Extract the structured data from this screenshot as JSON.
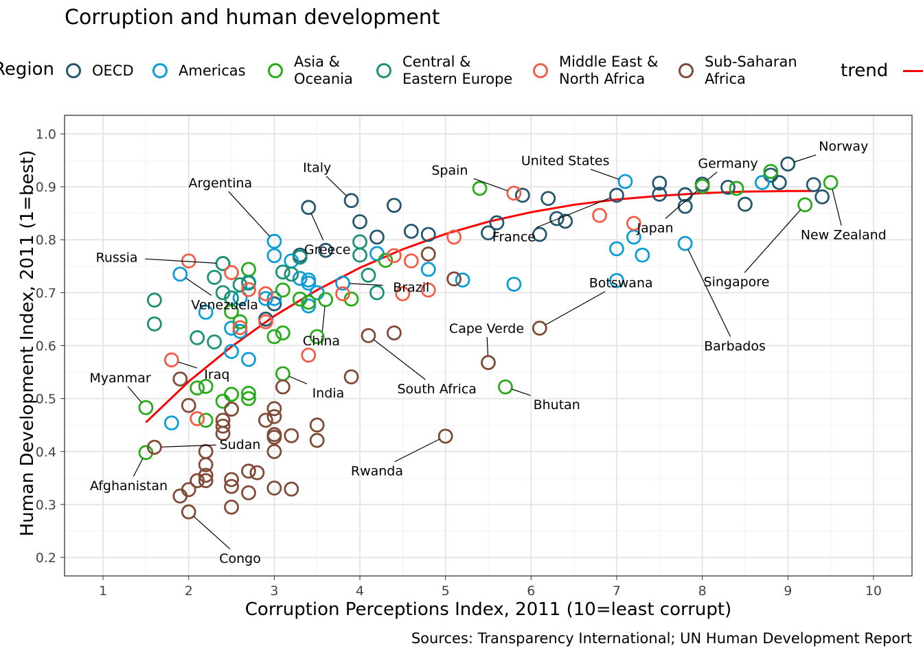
{
  "chart_data": {
    "type": "scatter",
    "title": "Corruption and human development",
    "xlabel": "Corruption Perceptions Index, 2011 (10=least corrupt)",
    "ylabel": "Human Development Index, 2011 (1=best)",
    "caption": "Sources: Transparency International; UN Human Development Report",
    "xlim": [
      0.55,
      10.45
    ],
    "ylim": [
      0.165,
      1.035
    ],
    "x_ticks": [
      "1",
      "2",
      "3",
      "4",
      "5",
      "6",
      "7",
      "8",
      "9",
      "10"
    ],
    "y_ticks": [
      "0.2",
      "0.3",
      "0.4",
      "0.5",
      "0.6",
      "0.7",
      "0.8",
      "0.9",
      "1.0"
    ],
    "grid": true,
    "legend": {
      "title": "Region",
      "placement": "top",
      "trend_label": "trend",
      "trend_color": "#ff0000"
    },
    "series": [
      {
        "name": "OECD",
        "label": "OECD",
        "color": "#24576d",
        "points": [
          [
            9.0,
            0.943
          ],
          [
            9.3,
            0.904
          ],
          [
            9.4,
            0.881
          ],
          [
            8.8,
            0.922
          ],
          [
            8.9,
            0.908
          ],
          [
            8.3,
            0.899
          ],
          [
            8.5,
            0.867
          ],
          [
            8.0,
            0.905
          ],
          [
            7.8,
            0.885
          ],
          [
            7.8,
            0.863
          ],
          [
            7.5,
            0.907
          ],
          [
            7.5,
            0.886
          ],
          [
            7.0,
            0.884
          ],
          [
            6.2,
            0.878
          ],
          [
            5.9,
            0.884
          ],
          [
            6.3,
            0.84
          ],
          [
            6.4,
            0.835
          ],
          [
            6.1,
            0.81
          ],
          [
            5.6,
            0.832
          ],
          [
            5.5,
            0.813
          ],
          [
            4.8,
            0.81
          ],
          [
            4.6,
            0.816
          ],
          [
            4.4,
            0.865
          ],
          [
            3.9,
            0.874
          ],
          [
            3.4,
            0.861
          ],
          [
            4.0,
            0.834
          ],
          [
            4.2,
            0.805
          ],
          [
            3.6,
            0.78
          ],
          [
            3.3,
            0.771
          ],
          [
            2.4,
            0.755
          ],
          [
            3.0,
            0.679
          ],
          [
            2.9,
            0.65
          ]
        ]
      },
      {
        "name": "Americas",
        "label": "Americas",
        "color": "#099dd7",
        "points": [
          [
            7.1,
            0.91
          ],
          [
            8.7,
            0.908
          ],
          [
            7.8,
            0.793
          ],
          [
            7.2,
            0.805
          ],
          [
            7.0,
            0.783
          ],
          [
            7.0,
            0.723
          ],
          [
            7.3,
            0.771
          ],
          [
            5.8,
            0.716
          ],
          [
            5.2,
            0.724
          ],
          [
            4.8,
            0.744
          ],
          [
            4.2,
            0.774
          ],
          [
            3.8,
            0.718
          ],
          [
            3.5,
            0.7
          ],
          [
            3.0,
            0.797
          ],
          [
            3.0,
            0.77
          ],
          [
            3.0,
            0.689
          ],
          [
            3.2,
            0.76
          ],
          [
            3.3,
            0.727
          ],
          [
            3.4,
            0.718
          ],
          [
            3.4,
            0.724
          ],
          [
            3.4,
            0.675
          ],
          [
            2.9,
            0.689
          ],
          [
            2.7,
            0.72
          ],
          [
            2.6,
            0.69
          ],
          [
            2.5,
            0.633
          ],
          [
            2.6,
            0.627
          ],
          [
            2.5,
            0.589
          ],
          [
            2.7,
            0.574
          ],
          [
            2.2,
            0.663
          ],
          [
            1.9,
            0.735
          ],
          [
            1.8,
            0.454
          ]
        ]
      },
      {
        "name": "Asia & Oceania",
        "label": "Asia &\nOceania",
        "color": "#28aa19",
        "points": [
          [
            9.5,
            0.908
          ],
          [
            9.2,
            0.866
          ],
          [
            8.8,
            0.929
          ],
          [
            8.4,
            0.897
          ],
          [
            8.0,
            0.901
          ],
          [
            5.4,
            0.897
          ],
          [
            5.7,
            0.522
          ],
          [
            4.3,
            0.761
          ],
          [
            3.9,
            0.688
          ],
          [
            3.6,
            0.687
          ],
          [
            3.5,
            0.617
          ],
          [
            3.4,
            0.682
          ],
          [
            3.3,
            0.688
          ],
          [
            3.1,
            0.705
          ],
          [
            3.1,
            0.547
          ],
          [
            3.1,
            0.624
          ],
          [
            3.0,
            0.617
          ],
          [
            2.7,
            0.744
          ],
          [
            2.7,
            0.51
          ],
          [
            2.7,
            0.5
          ],
          [
            2.6,
            0.645
          ],
          [
            2.5,
            0.508
          ],
          [
            2.5,
            0.664
          ],
          [
            2.4,
            0.495
          ],
          [
            2.2,
            0.523
          ],
          [
            2.2,
            0.459
          ],
          [
            2.1,
            0.52
          ],
          [
            1.5,
            0.483
          ],
          [
            1.5,
            0.398
          ]
        ]
      },
      {
        "name": "Central & Eastern Europe",
        "label": "Central &\nEastern Europe",
        "color": "#1b9176",
        "points": [
          [
            4.0,
            0.796
          ],
          [
            4.0,
            0.771
          ],
          [
            4.1,
            0.733
          ],
          [
            4.2,
            0.7
          ],
          [
            3.1,
            0.739
          ],
          [
            3.2,
            0.735
          ],
          [
            3.3,
            0.767
          ],
          [
            2.7,
            0.718
          ],
          [
            2.6,
            0.715
          ],
          [
            2.5,
            0.69
          ],
          [
            2.4,
            0.755
          ],
          [
            2.4,
            0.7
          ],
          [
            2.3,
            0.729
          ],
          [
            2.3,
            0.607
          ],
          [
            2.1,
            0.615
          ],
          [
            1.6,
            0.686
          ],
          [
            1.6,
            0.641
          ]
        ]
      },
      {
        "name": "Middle East & North Africa",
        "label": "Middle East &\nNorth Africa",
        "color": "#f25d48",
        "points": [
          [
            6.8,
            0.846
          ],
          [
            7.2,
            0.831
          ],
          [
            5.8,
            0.888
          ],
          [
            5.1,
            0.805
          ],
          [
            4.8,
            0.705
          ],
          [
            4.6,
            0.76
          ],
          [
            4.5,
            0.698
          ],
          [
            4.4,
            0.77
          ],
          [
            3.8,
            0.698
          ],
          [
            3.4,
            0.582
          ],
          [
            2.9,
            0.698
          ],
          [
            2.9,
            0.645
          ],
          [
            2.7,
            0.706
          ],
          [
            2.6,
            0.634
          ],
          [
            2.5,
            0.738
          ],
          [
            2.0,
            0.76
          ],
          [
            1.8,
            0.573
          ],
          [
            2.1,
            0.462
          ]
        ]
      },
      {
        "name": "Sub-Saharan Africa",
        "label": "Sub-Saharan\nAfrica",
        "color": "#814a36",
        "points": [
          [
            6.1,
            0.633
          ],
          [
            5.5,
            0.568
          ],
          [
            4.8,
            0.773
          ],
          [
            5.1,
            0.726
          ],
          [
            5.0,
            0.429
          ],
          [
            4.4,
            0.624
          ],
          [
            4.1,
            0.619
          ],
          [
            3.9,
            0.541
          ],
          [
            3.5,
            0.45
          ],
          [
            3.5,
            0.421
          ],
          [
            3.2,
            0.43
          ],
          [
            3.2,
            0.329
          ],
          [
            3.1,
            0.522
          ],
          [
            3.0,
            0.481
          ],
          [
            3.0,
            0.466
          ],
          [
            3.0,
            0.432
          ],
          [
            3.0,
            0.427
          ],
          [
            3.0,
            0.4
          ],
          [
            3.0,
            0.331
          ],
          [
            2.9,
            0.459
          ],
          [
            2.8,
            0.36
          ],
          [
            2.7,
            0.363
          ],
          [
            2.7,
            0.322
          ],
          [
            2.5,
            0.48
          ],
          [
            2.5,
            0.347
          ],
          [
            2.5,
            0.334
          ],
          [
            2.5,
            0.295
          ],
          [
            2.4,
            0.459
          ],
          [
            2.4,
            0.448
          ],
          [
            2.4,
            0.434
          ],
          [
            2.2,
            0.4
          ],
          [
            2.2,
            0.375
          ],
          [
            2.2,
            0.355
          ],
          [
            2.2,
            0.345
          ],
          [
            2.1,
            0.345
          ],
          [
            2.0,
            0.487
          ],
          [
            2.0,
            0.328
          ],
          [
            2.0,
            0.286
          ],
          [
            1.9,
            0.316
          ],
          [
            1.9,
            0.537
          ],
          [
            1.6,
            0.408
          ]
        ]
      }
    ],
    "trend": [
      [
        1.5,
        0.455
      ],
      [
        2.0,
        0.532
      ],
      [
        2.5,
        0.598
      ],
      [
        3.0,
        0.656
      ],
      [
        3.5,
        0.705
      ],
      [
        4.0,
        0.747
      ],
      [
        4.5,
        0.782
      ],
      [
        5.0,
        0.811
      ],
      [
        5.5,
        0.834
      ],
      [
        6.0,
        0.852
      ],
      [
        6.5,
        0.866
      ],
      [
        7.0,
        0.876
      ],
      [
        7.5,
        0.883
      ],
      [
        8.0,
        0.888
      ],
      [
        8.5,
        0.891
      ],
      [
        9.0,
        0.892
      ],
      [
        9.3,
        0.892
      ]
    ],
    "annotations": [
      {
        "text": "Norway",
        "x": 9.0,
        "y": 0.943,
        "lx": 9.65,
        "ly": 0.977
      },
      {
        "text": "Germany",
        "x": 8.0,
        "y": 0.905,
        "lx": 8.3,
        "ly": 0.945
      },
      {
        "text": "United States",
        "x": 7.1,
        "y": 0.91,
        "lx": 6.4,
        "ly": 0.95
      },
      {
        "text": "Spain",
        "x": 5.8,
        "y": 0.888,
        "lx": 5.05,
        "ly": 0.932
      },
      {
        "text": "Italy",
        "x": 3.9,
        "y": 0.874,
        "lx": 3.5,
        "ly": 0.937
      },
      {
        "text": "Argentina",
        "x": 3.0,
        "y": 0.797,
        "lx": 2.37,
        "ly": 0.908
      },
      {
        "text": "Greece",
        "x": 3.4,
        "y": 0.861,
        "lx": 3.62,
        "ly": 0.782
      },
      {
        "text": "Russia",
        "x": 2.4,
        "y": 0.755,
        "lx": 1.16,
        "ly": 0.767
      },
      {
        "text": "Japan",
        "x": 8.0,
        "y": 0.901,
        "lx": 7.45,
        "ly": 0.823
      },
      {
        "text": "France",
        "x": 7.0,
        "y": 0.884,
        "lx": 5.8,
        "ly": 0.806
      },
      {
        "text": "New Zealand",
        "x": 9.5,
        "y": 0.908,
        "lx": 9.65,
        "ly": 0.81
      },
      {
        "text": "Singapore",
        "x": 9.2,
        "y": 0.866,
        "lx": 8.4,
        "ly": 0.721
      },
      {
        "text": "Brazil",
        "x": 3.8,
        "y": 0.718,
        "lx": 4.6,
        "ly": 0.711
      },
      {
        "text": "Venezuela",
        "x": 1.9,
        "y": 0.735,
        "lx": 2.42,
        "ly": 0.678
      },
      {
        "text": "Botswana",
        "x": 6.1,
        "y": 0.633,
        "lx": 7.05,
        "ly": 0.719
      },
      {
        "text": "Cape Verde",
        "x": 5.5,
        "y": 0.568,
        "lx": 5.48,
        "ly": 0.633
      },
      {
        "text": "China",
        "x": 3.6,
        "y": 0.687,
        "lx": 3.55,
        "ly": 0.61
      },
      {
        "text": "Barbados",
        "x": 7.8,
        "y": 0.793,
        "lx": 8.38,
        "ly": 0.6
      },
      {
        "text": "Myanmar",
        "x": 1.5,
        "y": 0.483,
        "lx": 1.2,
        "ly": 0.54
      },
      {
        "text": "Iraq",
        "x": 1.8,
        "y": 0.573,
        "lx": 2.33,
        "ly": 0.546
      },
      {
        "text": "South Africa",
        "x": 4.1,
        "y": 0.619,
        "lx": 4.9,
        "ly": 0.519
      },
      {
        "text": "India",
        "x": 3.1,
        "y": 0.547,
        "lx": 3.63,
        "ly": 0.511
      },
      {
        "text": "Bhutan",
        "x": 5.7,
        "y": 0.522,
        "lx": 6.3,
        "ly": 0.489
      },
      {
        "text": "Sudan",
        "x": 1.6,
        "y": 0.408,
        "lx": 2.6,
        "ly": 0.414
      },
      {
        "text": "Rwanda",
        "x": 5.0,
        "y": 0.429,
        "lx": 4.2,
        "ly": 0.364
      },
      {
        "text": "Afghanistan",
        "x": 1.5,
        "y": 0.398,
        "lx": 1.3,
        "ly": 0.336
      },
      {
        "text": "Congo",
        "x": 2.0,
        "y": 0.286,
        "lx": 2.6,
        "ly": 0.199
      }
    ]
  }
}
